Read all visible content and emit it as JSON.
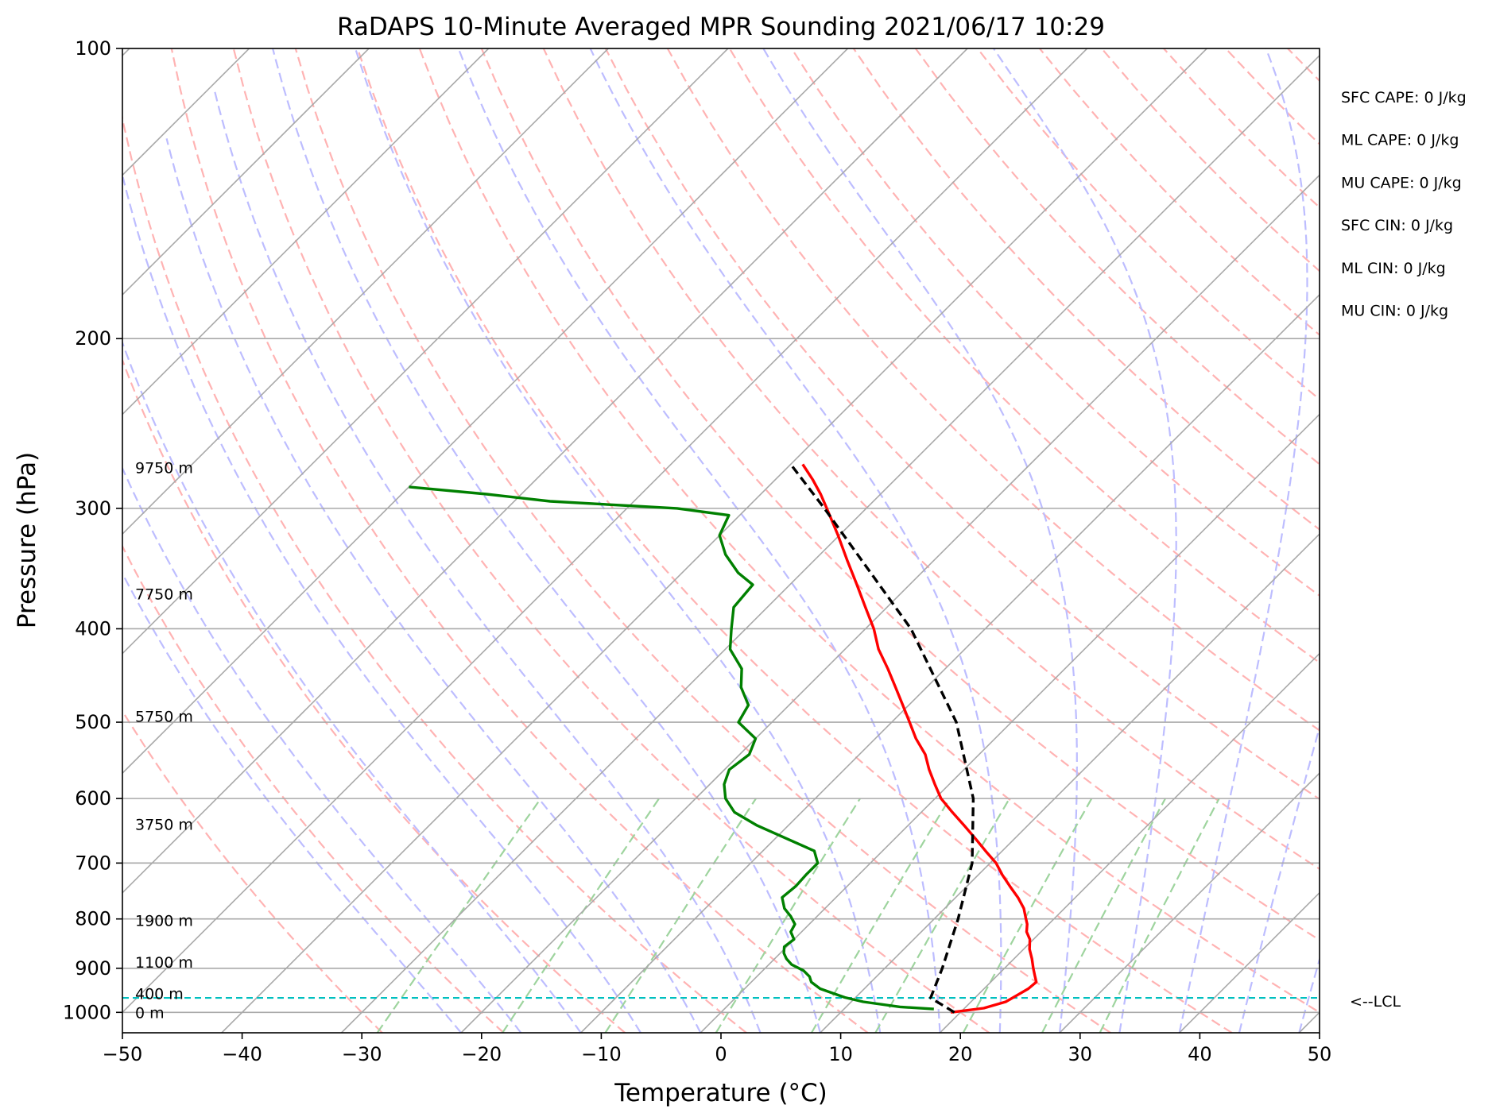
{
  "chart_data": {
    "type": "line",
    "subtype": "skew-t log-p",
    "title": "RaDAPS 10-Minute Averaged MPR Sounding 2021/06/17 10:29",
    "xlabel": "Temperature (°C)",
    "ylabel": "Pressure (hPa)",
    "xlim": [
      -50,
      50
    ],
    "ylim": [
      1050,
      100
    ],
    "y_scale": "log",
    "x_ticks": [
      -50,
      -40,
      -30,
      -20,
      -10,
      0,
      10,
      20,
      30,
      40,
      50
    ],
    "y_ticks": [
      100,
      200,
      300,
      400,
      500,
      600,
      700,
      800,
      900,
      1000
    ],
    "x_tick_labels": [
      "−50",
      "−40",
      "−30",
      "−20",
      "−10",
      "0",
      "10",
      "20",
      "30",
      "40",
      "50"
    ],
    "y_tick_labels": [
      "100",
      "200",
      "300",
      "400",
      "500",
      "600",
      "700",
      "800",
      "900",
      "1000"
    ],
    "grid": true,
    "series": [
      {
        "role": "temperature",
        "color": "#ff0000",
        "points": [
          [
            1000,
            19.2
          ],
          [
            990,
            21.6
          ],
          [
            975,
            22.9
          ],
          [
            960,
            23.3
          ],
          [
            945,
            23.7
          ],
          [
            930,
            23.8
          ],
          [
            915,
            23.1
          ],
          [
            900,
            22.4
          ],
          [
            880,
            21.5
          ],
          [
            860,
            20.5
          ],
          [
            840,
            19.7
          ],
          [
            825,
            18.8
          ],
          [
            810,
            18.2
          ],
          [
            795,
            17.4
          ],
          [
            780,
            16.6
          ],
          [
            760,
            15.2
          ],
          [
            740,
            13.6
          ],
          [
            720,
            12.0
          ],
          [
            700,
            10.5
          ],
          [
            680,
            8.6
          ],
          [
            660,
            6.7
          ],
          [
            640,
            4.7
          ],
          [
            620,
            2.6
          ],
          [
            600,
            0.5
          ],
          [
            580,
            -1.2
          ],
          [
            560,
            -2.9
          ],
          [
            540,
            -4.5
          ],
          [
            520,
            -6.6
          ],
          [
            500,
            -8.5
          ],
          [
            480,
            -10.5
          ],
          [
            460,
            -12.6
          ],
          [
            440,
            -14.8
          ],
          [
            420,
            -17.2
          ],
          [
            400,
            -19.3
          ],
          [
            380,
            -21.8
          ],
          [
            360,
            -24.4
          ],
          [
            340,
            -27.2
          ],
          [
            320,
            -30.1
          ],
          [
            300,
            -33.3
          ],
          [
            290,
            -35.0
          ],
          [
            280,
            -36.9
          ],
          [
            270,
            -39.0
          ]
        ]
      },
      {
        "role": "dewpoint",
        "color": "#008000",
        "points": [
          [
            992,
            17.5
          ],
          [
            987,
            14.5
          ],
          [
            975,
            11.0
          ],
          [
            965,
            9.1
          ],
          [
            955,
            7.7
          ],
          [
            945,
            6.3
          ],
          [
            930,
            5.0
          ],
          [
            918,
            4.4
          ],
          [
            905,
            3.4
          ],
          [
            892,
            1.9
          ],
          [
            880,
            1.0
          ],
          [
            868,
            0.3
          ],
          [
            855,
            -0.2
          ],
          [
            840,
            0.0
          ],
          [
            825,
            -0.9
          ],
          [
            810,
            -1.2
          ],
          [
            795,
            -2.2
          ],
          [
            780,
            -3.4
          ],
          [
            760,
            -4.5
          ],
          [
            740,
            -4.3
          ],
          [
            720,
            -4.4
          ],
          [
            700,
            -4.4
          ],
          [
            680,
            -5.7
          ],
          [
            660,
            -9.1
          ],
          [
            640,
            -12.6
          ],
          [
            620,
            -15.6
          ],
          [
            600,
            -17.5
          ],
          [
            580,
            -18.8
          ],
          [
            560,
            -19.6
          ],
          [
            540,
            -19.2
          ],
          [
            520,
            -20.0
          ],
          [
            500,
            -22.8
          ],
          [
            480,
            -23.4
          ],
          [
            460,
            -25.5
          ],
          [
            440,
            -27.0
          ],
          [
            420,
            -29.6
          ],
          [
            400,
            -31.2
          ],
          [
            380,
            -32.8
          ],
          [
            360,
            -33.1
          ],
          [
            350,
            -35.3
          ],
          [
            335,
            -37.9
          ],
          [
            320,
            -40.0
          ],
          [
            305,
            -40.9
          ],
          [
            300,
            -45.8
          ],
          [
            295,
            -57.0
          ],
          [
            290,
            -62.9
          ],
          [
            285,
            -70.0
          ]
        ]
      },
      {
        "role": "parcel",
        "color": "#000000",
        "dashed": true,
        "points": [
          [
            1000,
            19.5
          ],
          [
            966,
            16.3
          ],
          [
            900,
            14.8
          ],
          [
            800,
            12.0
          ],
          [
            700,
            8.5
          ],
          [
            600,
            3.2
          ],
          [
            500,
            -4.6
          ],
          [
            400,
            -16.2
          ],
          [
            300,
            -33.5
          ],
          [
            270,
            -40.0
          ]
        ]
      }
    ],
    "lcl": {
      "pressure": 966,
      "label": "<--LCL"
    },
    "height_labels": [
      {
        "pressure": 1000,
        "label": "0 m"
      },
      {
        "pressure": 956,
        "label": "400 m"
      },
      {
        "pressure": 887,
        "label": "1100 m"
      },
      {
        "pressure": 803,
        "label": "1900 m"
      },
      {
        "pressure": 638,
        "label": "3750 m"
      },
      {
        "pressure": 493,
        "label": "5750 m"
      },
      {
        "pressure": 368,
        "label": "7750 m"
      },
      {
        "pressure": 272,
        "label": "9750 m"
      }
    ],
    "indices": [
      "SFC CAPE: 0 J/kg",
      "ML CAPE: 0 J/kg",
      "MU CAPE: 0 J/kg",
      "SFC CIN: 0 J/kg",
      "ML CIN: 0 J/kg",
      "MU CIN: 0 J/kg"
    ],
    "colors": {
      "isotherm": "#a9a9a9",
      "dry_adiabat": "#ffb3b3",
      "moist_adiabat": "#bdbdff",
      "mixing_ratio": "#9ed49e",
      "lcl_line": "#00bfbf"
    }
  }
}
